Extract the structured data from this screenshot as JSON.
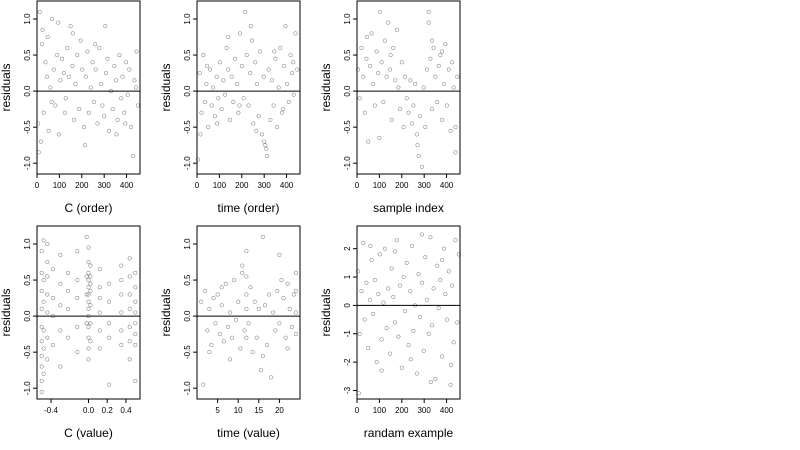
{
  "chart_data": [
    {
      "type": "scatter",
      "xlabel": "C (order)",
      "ylabel": "residuals",
      "xlim": [
        0,
        460
      ],
      "ylim": [
        -1.15,
        1.25
      ],
      "xticks": [
        0,
        100,
        200,
        300,
        400
      ],
      "xtick_labels": [
        "0",
        "100",
        "200",
        "300",
        "400"
      ],
      "yticks": [
        -1.0,
        -0.5,
        0.0,
        0.5,
        1.0
      ],
      "ytick_labels": [
        "-1.0",
        "-0.5",
        "0.0",
        "0.5",
        "1.0"
      ],
      "reference_line_y": 0,
      "x": [
        5,
        12,
        18,
        25,
        30,
        38,
        45,
        52,
        60,
        68,
        75,
        82,
        90,
        98,
        105,
        112,
        120,
        128,
        135,
        142,
        150,
        158,
        165,
        172,
        180,
        188,
        195,
        202,
        210,
        218,
        225,
        232,
        240,
        248,
        255,
        262,
        270,
        278,
        285,
        292,
        300,
        308,
        315,
        322,
        330,
        338,
        345,
        352,
        360,
        368,
        375,
        382,
        390,
        398,
        405,
        412,
        420,
        428,
        435,
        442,
        450,
        8,
        22,
        48,
        65,
        95,
        125,
        160,
        215,
        260,
        305,
        355,
        395,
        445
      ],
      "y": [
        -0.45,
        1.1,
        -0.7,
        0.85,
        -0.3,
        0.4,
        0.2,
        -0.55,
        0.05,
        1.0,
        0.3,
        -0.2,
        0.5,
        -0.6,
        0.15,
        0.45,
        0.25,
        -0.1,
        0.6,
        0.2,
        0.9,
        0.35,
        -0.4,
        0.1,
        0.5,
        -0.25,
        0.7,
        0.3,
        -0.5,
        0.2,
        0.55,
        -0.3,
        0.05,
        0.4,
        -0.15,
        0.3,
        -0.45,
        0.6,
        0.1,
        -0.2,
        -0.35,
        0.25,
        0.45,
        -0.55,
        0.0,
        -0.25,
        0.35,
        0.15,
        -0.4,
        0.5,
        -0.1,
        0.2,
        -0.3,
        0.4,
        -0.05,
        0.3,
        -0.5,
        -0.9,
        0.15,
        0.05,
        -0.2,
        -0.85,
        0.65,
        0.75,
        -0.15,
        0.95,
        -0.3,
        0.8,
        -0.75,
        0.65,
        0.9,
        -0.6,
        -0.45,
        0.55
      ]
    },
    {
      "type": "scatter",
      "xlabel": "time (order)",
      "ylabel": "residuals",
      "xlim": [
        0,
        460
      ],
      "ylim": [
        -1.15,
        1.25
      ],
      "xticks": [
        0,
        100,
        200,
        300,
        400
      ],
      "xtick_labels": [
        "0",
        "100",
        "200",
        "300",
        "400"
      ],
      "yticks": [
        -1.0,
        -0.5,
        0.0,
        0.5,
        1.0
      ],
      "ytick_labels": [
        "-1.0",
        "-0.5",
        "0.0",
        "0.5",
        "1.0"
      ],
      "reference_line_y": 0,
      "x": [
        5,
        12,
        20,
        28,
        35,
        42,
        50,
        58,
        65,
        72,
        80,
        88,
        95,
        102,
        110,
        118,
        125,
        132,
        140,
        148,
        155,
        162,
        170,
        178,
        185,
        192,
        200,
        208,
        215,
        222,
        230,
        238,
        245,
        252,
        260,
        268,
        275,
        282,
        290,
        298,
        305,
        312,
        320,
        328,
        335,
        342,
        350,
        358,
        365,
        372,
        380,
        388,
        395,
        402,
        410,
        418,
        425,
        432,
        440,
        448,
        15,
        45,
        90,
        140,
        190,
        240,
        265,
        300,
        310,
        345,
        385,
        430
      ],
      "y": [
        -0.95,
        0.25,
        -0.3,
        0.5,
        -0.15,
        0.1,
        -0.5,
        0.3,
        -0.2,
        0.05,
        -0.35,
        0.2,
        -0.1,
        0.4,
        -0.25,
        0.15,
        -0.05,
        0.6,
        0.3,
        -0.4,
        0.2,
        -0.15,
        0.45,
        0.1,
        -0.3,
        0.8,
        0.35,
        -0.1,
        1.1,
        0.5,
        -0.2,
        0.25,
        0.7,
        -0.45,
        0.4,
        0.1,
        -0.35,
        0.55,
        -0.6,
        0.2,
        -0.75,
        -0.9,
        0.3,
        -0.4,
        0.15,
        -0.2,
        0.45,
        -0.5,
        0.05,
        0.6,
        -0.3,
        0.35,
        0.9,
        0.1,
        -0.15,
        0.5,
        0.25,
        -0.05,
        0.8,
        0.3,
        -0.6,
        0.35,
        -0.45,
        0.75,
        -0.2,
        0.9,
        -0.55,
        -0.7,
        -0.8,
        0.55,
        -0.25,
        0.4
      ]
    },
    {
      "type": "scatter",
      "xlabel": "sample index",
      "ylabel": "residuals",
      "xlim": [
        0,
        460
      ],
      "ylim": [
        -1.15,
        1.25
      ],
      "xticks": [
        0,
        100,
        200,
        300,
        400
      ],
      "xtick_labels": [
        "0",
        "100",
        "200",
        "300",
        "400"
      ],
      "yticks": [
        -1.0,
        -0.5,
        0.0,
        0.5,
        1.0
      ],
      "ytick_labels": [
        "-1.0",
        "-0.5",
        "0.0",
        "0.5",
        "1.0"
      ],
      "reference_line_y": 0,
      "x": [
        5,
        12,
        20,
        28,
        35,
        42,
        50,
        58,
        65,
        72,
        80,
        88,
        95,
        102,
        110,
        118,
        125,
        132,
        140,
        148,
        155,
        162,
        170,
        178,
        185,
        192,
        200,
        208,
        215,
        222,
        230,
        238,
        245,
        252,
        260,
        268,
        275,
        282,
        290,
        298,
        305,
        312,
        320,
        328,
        335,
        342,
        350,
        358,
        365,
        372,
        380,
        388,
        395,
        402,
        410,
        418,
        425,
        432,
        440,
        448,
        45,
        100,
        150,
        270,
        320,
        335,
        380,
        440
      ],
      "y": [
        0.3,
        -0.1,
        0.6,
        0.2,
        -0.3,
        0.45,
        -0.7,
        0.35,
        0.8,
        0.1,
        -0.2,
        0.55,
        0.25,
        1.1,
        0.4,
        -0.15,
        0.7,
        0.2,
        0.95,
        0.3,
        -0.4,
        0.6,
        0.15,
        0.85,
        0.05,
        -0.25,
        0.4,
        -0.5,
        0.2,
        -0.1,
        -0.3,
        0.15,
        -0.45,
        -0.2,
        0.1,
        -0.6,
        -0.9,
        -0.35,
        -1.05,
        0.05,
        -0.5,
        0.3,
        1.1,
        0.45,
        -0.25,
        0.6,
        0.2,
        -0.15,
        0.35,
        0.5,
        -0.4,
        0.1,
        0.65,
        -0.2,
        0.3,
        -0.55,
        0.4,
        0.05,
        -0.85,
        0.2,
        0.75,
        -0.65,
        0.5,
        -0.75,
        0.95,
        0.7,
        0.55,
        -0.5
      ]
    },
    {
      "type": "scatter",
      "xlabel": "C (value)",
      "ylabel": "residuals",
      "xlim": [
        -0.55,
        0.55
      ],
      "ylim": [
        -1.15,
        1.25
      ],
      "xticks": [
        -0.4,
        0.0,
        0.2,
        0.4
      ],
      "xtick_labels": [
        "-0.4",
        "0.0",
        "0.2",
        "0.4"
      ],
      "yticks": [
        -1.0,
        -0.5,
        0.0,
        0.5,
        1.0
      ],
      "ytick_labels": [
        "-1.0",
        "-0.5",
        "0.0",
        "0.5",
        "1.0"
      ],
      "reference_line_y": 0,
      "x": [
        -0.5,
        -0.5,
        -0.5,
        -0.5,
        -0.5,
        -0.5,
        -0.5,
        -0.5,
        -0.5,
        -0.5,
        -0.48,
        -0.48,
        -0.48,
        -0.48,
        -0.48,
        -0.48,
        -0.44,
        -0.44,
        -0.44,
        -0.44,
        -0.44,
        -0.44,
        -0.44,
        -0.38,
        -0.38,
        -0.38,
        -0.38,
        -0.3,
        -0.3,
        -0.3,
        -0.3,
        -0.3,
        -0.22,
        -0.22,
        -0.22,
        -0.22,
        -0.12,
        -0.12,
        -0.12,
        -0.12,
        -0.12,
        -0.02,
        -0.02,
        -0.02,
        -0.02,
        0.0,
        0.0,
        0.0,
        0.0,
        0.0,
        0.0,
        0.0,
        0.0,
        0.0,
        0.0,
        0.0,
        0.0,
        0.0,
        0.02,
        0.02,
        0.02,
        0.02,
        0.02,
        0.02,
        0.02,
        0.12,
        0.12,
        0.12,
        0.12,
        0.12,
        0.12,
        0.22,
        0.22,
        0.22,
        0.22,
        0.22,
        0.35,
        0.35,
        0.35,
        0.35,
        0.35,
        0.35,
        0.44,
        0.44,
        0.44,
        0.44,
        0.44,
        0.44,
        0.44,
        0.5,
        0.5,
        0.5,
        0.5,
        0.5,
        0.5,
        0.5,
        0.5
      ],
      "y": [
        -1.05,
        -0.9,
        -0.7,
        -0.55,
        -0.35,
        -0.15,
        0.1,
        0.35,
        0.6,
        0.9,
        -0.8,
        -0.45,
        -0.2,
        0.2,
        0.5,
        1.05,
        -0.6,
        -0.3,
        0.05,
        0.3,
        0.55,
        0.75,
        1.0,
        -0.4,
        0.0,
        0.25,
        0.65,
        -0.7,
        -0.2,
        0.15,
        0.45,
        0.85,
        -0.3,
        0.1,
        0.35,
        0.6,
        -0.5,
        -0.15,
        0.25,
        0.5,
        0.9,
        -0.1,
        0.3,
        0.55,
        1.1,
        -0.6,
        -0.45,
        -0.3,
        -0.15,
        0.0,
        0.1,
        0.2,
        0.3,
        0.4,
        0.5,
        0.6,
        0.75,
        0.95,
        -0.35,
        -0.1,
        0.15,
        0.35,
        0.45,
        0.55,
        0.7,
        -0.45,
        -0.2,
        0.05,
        0.25,
        0.4,
        0.65,
        -0.95,
        -0.3,
        -0.1,
        0.2,
        0.45,
        -0.4,
        -0.2,
        0.05,
        0.3,
        0.5,
        0.7,
        -0.6,
        -0.35,
        -0.15,
        0.1,
        0.3,
        0.55,
        0.8,
        -0.9,
        -0.4,
        -0.25,
        -0.1,
        0.05,
        0.2,
        0.4,
        0.6
      ]
    },
    {
      "type": "scatter",
      "xlabel": "time (value)",
      "ylabel": "residuals",
      "xlim": [
        0,
        25
      ],
      "ylim": [
        -1.15,
        1.25
      ],
      "xticks": [
        5,
        10,
        15,
        20
      ],
      "xtick_labels": [
        "5",
        "10",
        "15",
        "20"
      ],
      "yticks": [
        -1.0,
        -0.5,
        0.0,
        0.5,
        1.0
      ],
      "ytick_labels": [
        "-1.0",
        "-0.5",
        "0.0",
        "0.5",
        "1.0"
      ],
      "reference_line_y": 0,
      "x": [
        1.0,
        1.5,
        2.0,
        2.5,
        3.0,
        3.5,
        4.0,
        4.5,
        5.0,
        5.5,
        6.0,
        6.5,
        7.0,
        7.5,
        8.0,
        8.5,
        9.0,
        9.5,
        10.0,
        10.5,
        11.0,
        11.5,
        12.0,
        12.0,
        12.0,
        12.0,
        12.0,
        12.5,
        13.0,
        13.5,
        14.0,
        14.5,
        15.0,
        15.5,
        16.0,
        16.5,
        17.0,
        17.5,
        18.0,
        18.5,
        19.0,
        19.5,
        20.0,
        20.5,
        21.0,
        21.5,
        22.0,
        22.5,
        23.0,
        23.5,
        24.0,
        24.0,
        24.0,
        24.0,
        3.0,
        6.0,
        8.0,
        11.0,
        16.0,
        20.0,
        22.0
      ],
      "y": [
        0.2,
        -0.95,
        0.35,
        -0.2,
        0.1,
        -0.4,
        0.25,
        -0.1,
        0.3,
        -0.25,
        0.15,
        -0.35,
        0.45,
        -0.15,
        0.05,
        -0.3,
        0.5,
        -0.05,
        0.2,
        -0.45,
        0.6,
        -0.2,
        0.9,
        0.55,
        0.3,
        0.1,
        -0.3,
        -0.1,
        0.4,
        -0.5,
        0.2,
        -0.3,
        0.1,
        -0.75,
        -0.55,
        0.15,
        -0.4,
        0.3,
        -0.85,
        0.05,
        -0.2,
        0.35,
        -0.1,
        0.5,
        0.25,
        -0.3,
        0.45,
        0.1,
        -0.15,
        0.3,
        0.6,
        0.35,
        0.05,
        -0.25,
        -0.5,
        0.4,
        -0.6,
        0.7,
        1.1,
        0.85,
        -0.45
      ]
    },
    {
      "type": "scatter",
      "xlabel": "randam example",
      "ylabel": "residuals",
      "xlim": [
        0,
        460
      ],
      "ylim": [
        -3.3,
        2.8
      ],
      "xticks": [
        0,
        100,
        200,
        300,
        400
      ],
      "xtick_labels": [
        "0",
        "100",
        "200",
        "300",
        "400"
      ],
      "yticks": [
        -3,
        -2,
        -1,
        0,
        1,
        2
      ],
      "ytick_labels": [
        "-3",
        "-2",
        "-1",
        "0",
        "1",
        "2"
      ],
      "reference_line_y": 0,
      "x": [
        5,
        12,
        20,
        28,
        35,
        42,
        50,
        58,
        65,
        72,
        80,
        88,
        95,
        102,
        110,
        118,
        125,
        132,
        140,
        148,
        155,
        162,
        170,
        178,
        185,
        192,
        200,
        208,
        215,
        222,
        230,
        238,
        245,
        252,
        260,
        268,
        275,
        282,
        290,
        298,
        305,
        312,
        320,
        328,
        335,
        342,
        350,
        358,
        365,
        372,
        380,
        388,
        395,
        402,
        410,
        418,
        425,
        432,
        440,
        448,
        8,
        60,
        110,
        170,
        240,
        290,
        330,
        380,
        420,
        455
      ],
      "y": [
        1.2,
        -1.0,
        0.5,
        2.2,
        -0.5,
        0.8,
        -1.5,
        0.2,
        1.6,
        -0.3,
        0.9,
        -2.0,
        0.4,
        1.8,
        -1.2,
        0.1,
        2.0,
        -0.8,
        0.6,
        -1.7,
        1.3,
        0.3,
        -0.6,
        2.3,
        -1.1,
        0.7,
        -2.2,
        1.0,
        -0.2,
        1.5,
        -1.4,
        0.5,
        2.1,
        -0.9,
        0.0,
        -2.4,
        1.1,
        -0.4,
        0.8,
        -1.6,
        1.7,
        0.2,
        -1.0,
        2.4,
        -0.7,
        0.6,
        -2.6,
        1.4,
        -0.1,
        0.9,
        -1.8,
        2.0,
        0.4,
        -0.5,
        1.2,
        -2.8,
        0.7,
        -1.3,
        2.3,
        -0.6,
        -3.1,
        2.1,
        -2.3,
        1.9,
        -1.9,
        2.5,
        -2.7,
        1.6,
        -2.1,
        1.8
      ]
    }
  ]
}
